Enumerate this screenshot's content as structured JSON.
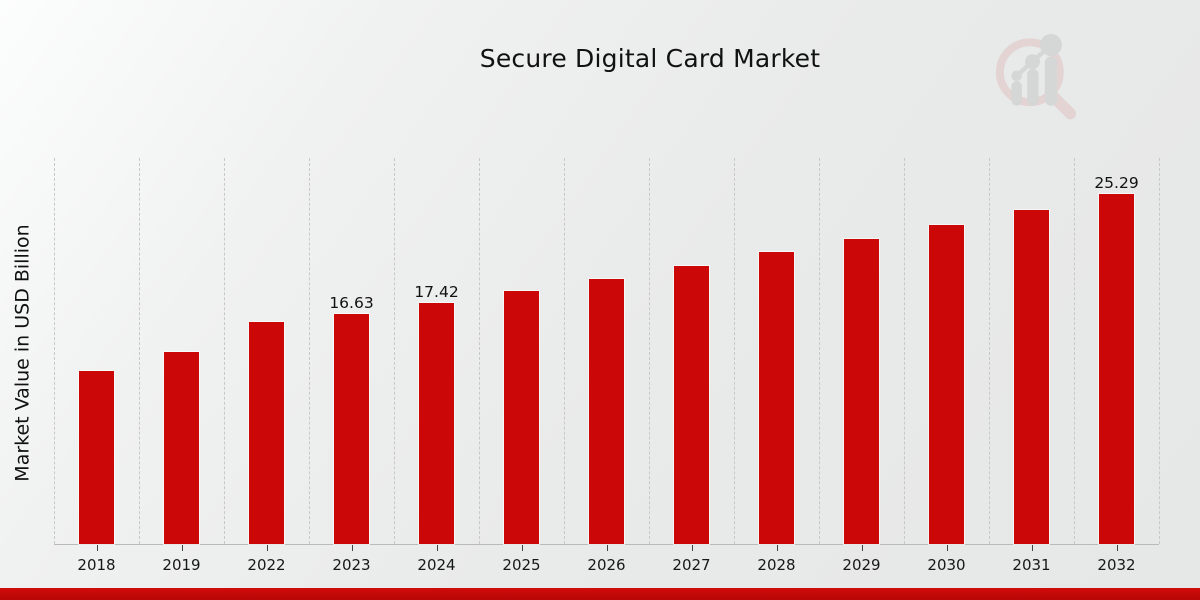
{
  "title": "Secure Digital Card Market",
  "ylabel": "Market Value in USD Billion",
  "colors": {
    "bar": "#cb0707",
    "banner": "#c40909",
    "gridline": "#c7c8c8",
    "axis": "#b9baba",
    "text": "#111111",
    "logo_ring": "#dcbcbc",
    "logo_gray": "#c6c7c7"
  },
  "logo": {
    "name": "magnifier-bar-trend-logo"
  },
  "chart_data": {
    "type": "bar",
    "title": "Secure Digital Card Market",
    "xlabel": "",
    "ylabel": "Market Value in USD Billion",
    "categories": [
      "2018",
      "2019",
      "2022",
      "2023",
      "2024",
      "2025",
      "2026",
      "2027",
      "2028",
      "2029",
      "2030",
      "2031",
      "2032"
    ],
    "values": [
      12.5,
      13.9,
      16.05,
      16.63,
      17.42,
      18.3,
      19.15,
      20.1,
      21.1,
      22.05,
      23.1,
      24.2,
      25.29
    ],
    "bar_labels": [
      "",
      "",
      "",
      "16.63",
      "17.42",
      "",
      "",
      "",
      "",
      "",
      "",
      "",
      "25.29"
    ],
    "ylim": [
      0,
      28
    ],
    "grid": "vertical dashed category separators",
    "legend_position": "none",
    "bar_color": "#cb0707",
    "background": "light gray gradient"
  }
}
